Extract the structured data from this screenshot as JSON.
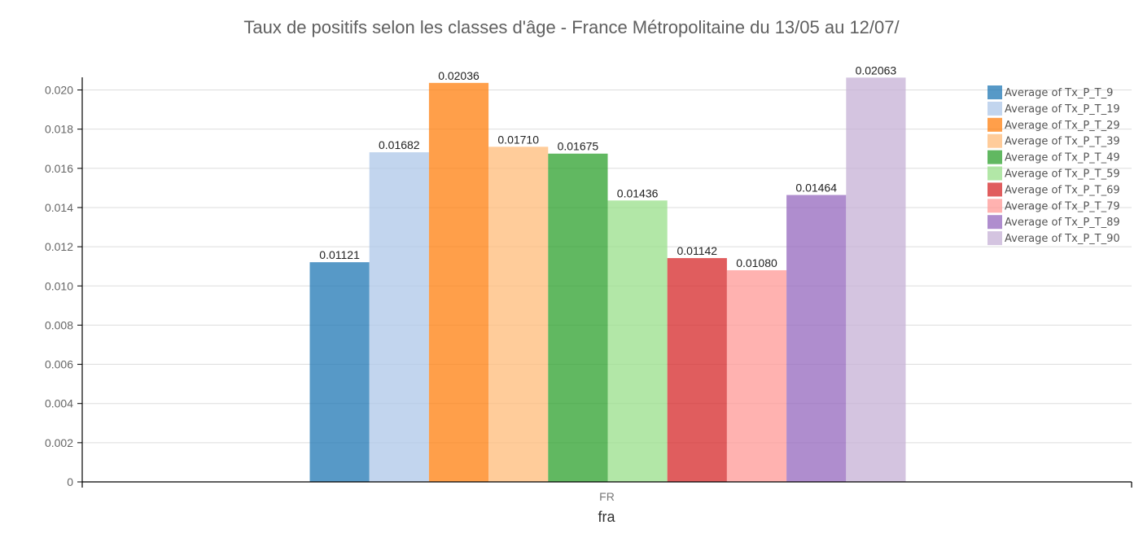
{
  "chart_data": {
    "type": "bar",
    "title": "Taux de positifs selon les classes d'âge - France Métropolitaine du 13/05 au 12/07/",
    "xlabel": "fra",
    "ylabel": "",
    "categories": [
      "FR"
    ],
    "ylim": [
      0,
      0.0207
    ],
    "yticks": [
      "0",
      "0.002",
      "0.004",
      "0.006",
      "0.008",
      "0.010",
      "0.012",
      "0.014",
      "0.016",
      "0.018",
      "0.020"
    ],
    "grid": true,
    "legend_position": "top-right",
    "series": [
      {
        "name": "Average of Tx_P_T_9",
        "values": [
          0.01121
        ],
        "label": "0.01121",
        "color": "#1f77b4"
      },
      {
        "name": "Average of Tx_P_T_19",
        "values": [
          0.01682
        ],
        "label": "0.01682",
        "color": "#aec7e8"
      },
      {
        "name": "Average of Tx_P_T_29",
        "values": [
          0.02036
        ],
        "label": "0.02036",
        "color": "#ff7f0e"
      },
      {
        "name": "Average of Tx_P_T_39",
        "values": [
          0.0171
        ],
        "label": "0.01710",
        "color": "#ffbb78"
      },
      {
        "name": "Average of Tx_P_T_49",
        "values": [
          0.01675
        ],
        "label": "0.01675",
        "color": "#2ca02c"
      },
      {
        "name": "Average of Tx_P_T_59",
        "values": [
          0.01436
        ],
        "label": "0.01436",
        "color": "#98df8a"
      },
      {
        "name": "Average of Tx_P_T_69",
        "values": [
          0.01142
        ],
        "label": "0.01142",
        "color": "#d62728"
      },
      {
        "name": "Average of Tx_P_T_79",
        "values": [
          0.0108
        ],
        "label": "0.01080",
        "color": "#ff9896"
      },
      {
        "name": "Average of Tx_P_T_89",
        "values": [
          0.01464
        ],
        "label": "0.01464",
        "color": "#9467bd"
      },
      {
        "name": "Average of Tx_P_T_90",
        "values": [
          0.02063
        ],
        "label": "0.02063",
        "color": "#c5b0d5"
      }
    ]
  }
}
